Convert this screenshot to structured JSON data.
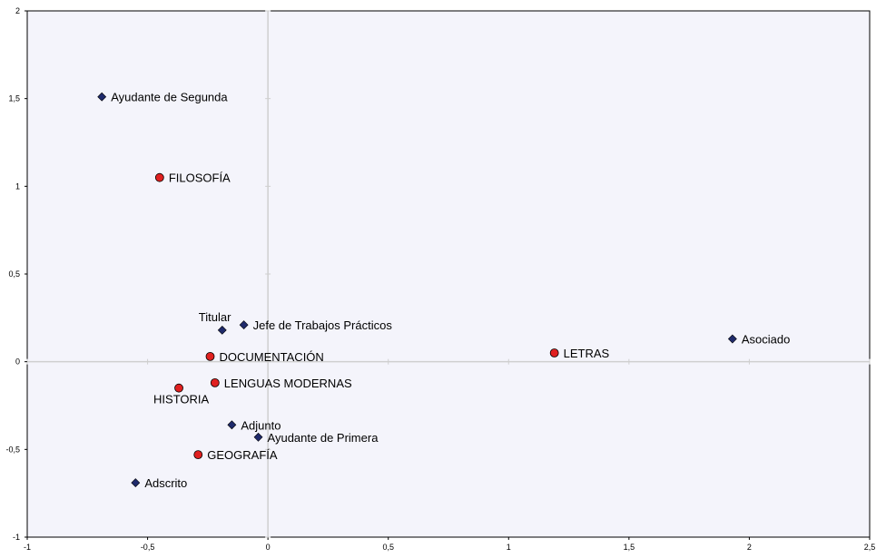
{
  "chart_data": {
    "type": "scatter",
    "xlim": [
      -1,
      2.5
    ],
    "ylim": [
      -1,
      2
    ],
    "x_ticks": [
      {
        "value": -1,
        "label": "-1"
      },
      {
        "value": -0.5,
        "label": "-0,5"
      },
      {
        "value": 0,
        "label": "0"
      },
      {
        "value": 0.5,
        "label": "0,5"
      },
      {
        "value": 1,
        "label": "1"
      },
      {
        "value": 1.5,
        "label": "1,5"
      },
      {
        "value": 2,
        "label": "2"
      },
      {
        "value": 2.5,
        "label": "2,5"
      }
    ],
    "y_ticks": [
      {
        "value": -1,
        "label": "-1"
      },
      {
        "value": -0.5,
        "label": "-0,5"
      },
      {
        "value": 0,
        "label": "0"
      },
      {
        "value": 0.5,
        "label": "0,5"
      },
      {
        "value": 1,
        "label": "1"
      },
      {
        "value": 1.5,
        "label": "1,5"
      },
      {
        "value": 2,
        "label": "2"
      }
    ],
    "grid": false,
    "series": [
      {
        "marker": "diamond",
        "color": "#1f2a6b",
        "points": [
          {
            "label": "Ayudante de Segunda",
            "x": -0.69,
            "y": 1.51
          },
          {
            "label": "Titular",
            "x": -0.19,
            "y": 0.18
          },
          {
            "label": "Jefe de Trabajos Prácticos",
            "x": -0.1,
            "y": 0.21
          },
          {
            "label": "Asociado",
            "x": 1.93,
            "y": 0.13
          },
          {
            "label": "Adjunto",
            "x": -0.15,
            "y": -0.36
          },
          {
            "label": "Ayudante de Primera",
            "x": -0.04,
            "y": -0.43
          },
          {
            "label": "Adscrito",
            "x": -0.55,
            "y": -0.69
          }
        ]
      },
      {
        "marker": "circle",
        "color": "#e02020",
        "points": [
          {
            "label": "FILOSOFÍA",
            "x": -0.45,
            "y": 1.05
          },
          {
            "label": "DOCUMENTACIÓN",
            "x": -0.24,
            "y": 0.03
          },
          {
            "label": "LETRAS",
            "x": 1.19,
            "y": 0.05
          },
          {
            "label": "LENGUAS MODERNAS",
            "x": -0.22,
            "y": -0.12
          },
          {
            "label": "HISTORIA",
            "x": -0.37,
            "y": -0.15
          },
          {
            "label": "GEOGRAFÍA",
            "x": -0.29,
            "y": -0.53
          }
        ]
      }
    ]
  }
}
